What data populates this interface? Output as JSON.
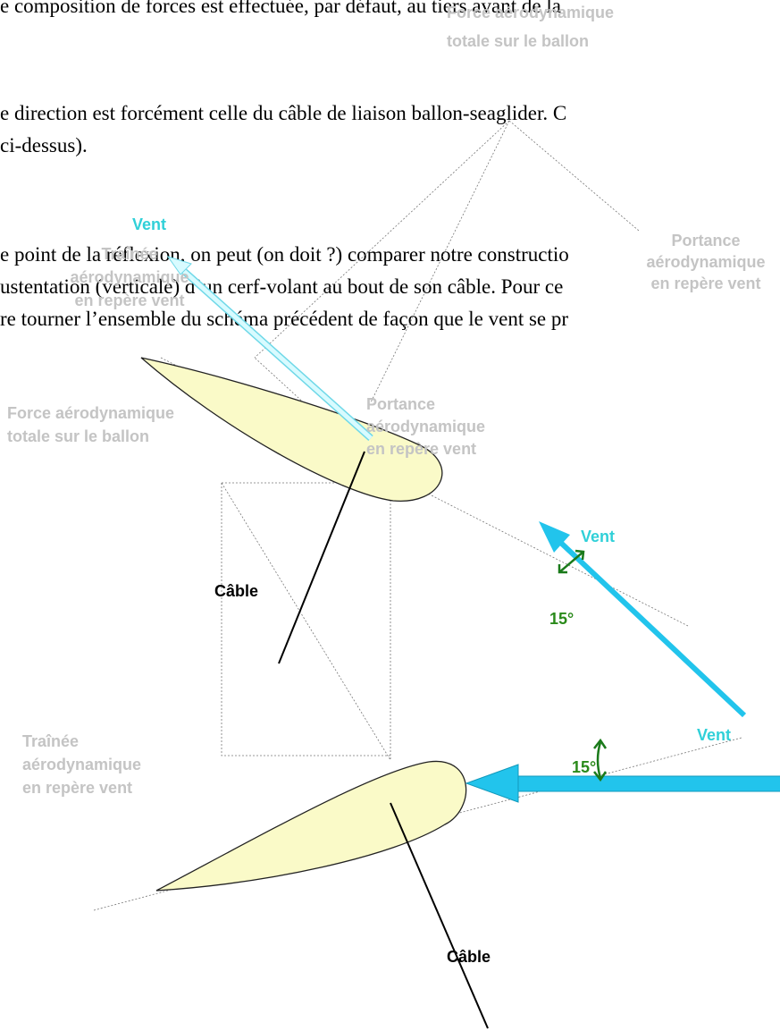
{
  "document": {
    "lines": [
      "e composition de forces est effectuée, par défaut, au tiers avant de la",
      "e direction est forcément celle du câble de liaison ballon-seaglider. C",
      "ci-dessus).",
      "e point de la réflexion, on peut (on doit ?) comparer notre constructio",
      "ustentation (verticale) d’un cerf-volant au bout de son câble. Pour ce",
      "re tourner l’ensemble du schéma précédent de façon que le vent se pr"
    ]
  },
  "diagram": {
    "labels": [
      {
        "lines": [
          "Force aérodynamique",
          "totale sur le ballon"
        ]
      },
      {
        "lines": [
          "Traînée",
          "aérodynamique",
          "en repère vent"
        ]
      },
      {
        "lines": [
          "Portance",
          "aérodynamique",
          "en repère vent"
        ]
      },
      {
        "lines": [
          "Force aérodynamique",
          "totale sur le ballon"
        ]
      },
      {
        "lines": [
          "Portance",
          "aérodynamique",
          "en repère vent"
        ]
      },
      {
        "lines": [
          "Traînée",
          "aérodynamique",
          "en repère vent"
        ]
      },
      {
        "lines": [
          "Vent"
        ]
      },
      {
        "lines": [
          "Vent"
        ]
      },
      {
        "lines": [
          "Vent"
        ]
      },
      {
        "lines": [
          "Câble"
        ]
      },
      {
        "lines": [
          "Câble"
        ]
      },
      {
        "lines": [
          "15°"
        ]
      },
      {
        "lines": [
          "15°"
        ]
      }
    ]
  }
}
